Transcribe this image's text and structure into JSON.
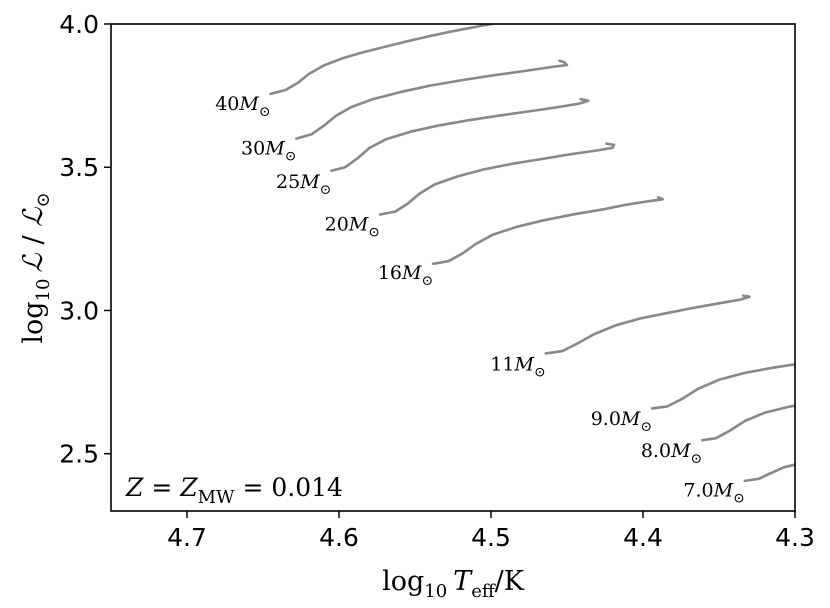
{
  "chart_data": {
    "type": "line",
    "xlabel_parts": {
      "base": "log",
      "sub": "10",
      "var": "T",
      "var_sub": "eff",
      "unit": "/K"
    },
    "ylabel_parts": {
      "base": "log",
      "sub": "10",
      "var": "ℒ",
      "sep": " / ",
      "sun": "ℒ",
      "sun_sub": "⊙"
    },
    "xlim": [
      4.75,
      4.3
    ],
    "ylim": [
      2.3,
      4.0
    ],
    "x_ticks": [
      4.7,
      4.6,
      4.5,
      4.4,
      4.3
    ],
    "x_tick_labels": [
      "4.7",
      "4.6",
      "4.5",
      "4.4",
      "4.3"
    ],
    "y_ticks": [
      2.5,
      3.0,
      3.5,
      4.0
    ],
    "y_tick_labels": [
      "2.5",
      "3.0",
      "3.5",
      "4.0"
    ],
    "grid": false,
    "line_color": "#888888",
    "annotation": {
      "lhs": "Z",
      "eq1": " = ",
      "mid": "Z",
      "mid_sub": "MW",
      "eq2": " = ",
      "value": "0.014"
    },
    "series": [
      {
        "name": "40M⊙",
        "mass": "40",
        "label_at": [
          4.645,
          3.7
        ],
        "points": [
          [
            4.645,
            3.756
          ],
          [
            4.635,
            3.77
          ],
          [
            4.627,
            3.795
          ],
          [
            4.62,
            3.825
          ],
          [
            4.61,
            3.855
          ],
          [
            4.598,
            3.88
          ],
          [
            4.585,
            3.9
          ],
          [
            4.57,
            3.92
          ],
          [
            4.555,
            3.94
          ],
          [
            4.54,
            3.958
          ],
          [
            4.525,
            3.975
          ],
          [
            4.51,
            3.99
          ],
          [
            4.495,
            4.005
          ]
        ]
      },
      {
        "name": "30M⊙",
        "mass": "30",
        "label_at": [
          4.628,
          3.545
        ],
        "points": [
          [
            4.628,
            3.6
          ],
          [
            4.618,
            3.615
          ],
          [
            4.61,
            3.645
          ],
          [
            4.602,
            3.68
          ],
          [
            4.592,
            3.71
          ],
          [
            4.578,
            3.737
          ],
          [
            4.56,
            3.762
          ],
          [
            4.54,
            3.785
          ],
          [
            4.518,
            3.805
          ],
          [
            4.497,
            3.822
          ],
          [
            4.478,
            3.836
          ],
          [
            4.46,
            3.85
          ],
          [
            4.45,
            3.857
          ],
          [
            4.452,
            3.867
          ],
          [
            4.455,
            3.872
          ]
        ]
      },
      {
        "name": "25M⊙",
        "mass": "25",
        "label_at": [
          4.605,
          3.428
        ],
        "points": [
          [
            4.605,
            3.488
          ],
          [
            4.596,
            3.5
          ],
          [
            4.588,
            3.53
          ],
          [
            4.58,
            3.567
          ],
          [
            4.569,
            3.598
          ],
          [
            4.553,
            3.624
          ],
          [
            4.535,
            3.645
          ],
          [
            4.515,
            3.664
          ],
          [
            4.495,
            3.68
          ],
          [
            4.475,
            3.695
          ],
          [
            4.456,
            3.71
          ],
          [
            4.442,
            3.722
          ],
          [
            4.436,
            3.732
          ],
          [
            4.441,
            3.738
          ]
        ]
      },
      {
        "name": "20M⊙",
        "mass": "20",
        "label_at": [
          4.573,
          3.28
        ],
        "points": [
          [
            4.573,
            3.335
          ],
          [
            4.563,
            3.345
          ],
          [
            4.555,
            3.372
          ],
          [
            4.547,
            3.408
          ],
          [
            4.537,
            3.44
          ],
          [
            4.522,
            3.468
          ],
          [
            4.505,
            3.492
          ],
          [
            4.485,
            3.513
          ],
          [
            4.465,
            3.53
          ],
          [
            4.448,
            3.545
          ],
          [
            4.431,
            3.558
          ],
          [
            4.42,
            3.568
          ],
          [
            4.419,
            3.578
          ],
          [
            4.424,
            3.582
          ]
        ]
      },
      {
        "name": "16M⊙",
        "mass": "16",
        "label_at": [
          4.538,
          3.11
        ],
        "points": [
          [
            4.538,
            3.163
          ],
          [
            4.528,
            3.172
          ],
          [
            4.519,
            3.198
          ],
          [
            4.51,
            3.232
          ],
          [
            4.499,
            3.264
          ],
          [
            4.483,
            3.292
          ],
          [
            4.465,
            3.315
          ],
          [
            4.445,
            3.336
          ],
          [
            4.426,
            3.353
          ],
          [
            4.412,
            3.368
          ],
          [
            4.398,
            3.38
          ],
          [
            4.387,
            3.388
          ],
          [
            4.39,
            3.395
          ]
        ]
      },
      {
        "name": "11M⊙",
        "mass": "11",
        "label_at": [
          4.464,
          2.79
        ],
        "points": [
          [
            4.464,
            2.85
          ],
          [
            4.453,
            2.858
          ],
          [
            4.443,
            2.885
          ],
          [
            4.432,
            2.918
          ],
          [
            4.418,
            2.948
          ],
          [
            4.402,
            2.972
          ],
          [
            4.385,
            2.99
          ],
          [
            4.366,
            3.01
          ],
          [
            4.35,
            3.025
          ],
          [
            4.336,
            3.038
          ],
          [
            4.33,
            3.048
          ],
          [
            4.334,
            3.052
          ]
        ]
      },
      {
        "name": "9.0M⊙",
        "mass": "9.0",
        "label_at": [
          4.394,
          2.6
        ],
        "points": [
          [
            4.394,
            2.658
          ],
          [
            4.384,
            2.665
          ],
          [
            4.374,
            2.692
          ],
          [
            4.364,
            2.726
          ],
          [
            4.35,
            2.758
          ],
          [
            4.333,
            2.782
          ],
          [
            4.315,
            2.8
          ],
          [
            4.3,
            2.812
          ]
        ]
      },
      {
        "name": "8.0M⊙",
        "mass": "8.0",
        "label_at": [
          4.361,
          2.488
        ],
        "points": [
          [
            4.361,
            2.547
          ],
          [
            4.352,
            2.554
          ],
          [
            4.343,
            2.58
          ],
          [
            4.333,
            2.614
          ],
          [
            4.32,
            2.643
          ],
          [
            4.304,
            2.664
          ],
          [
            4.3,
            2.668
          ]
        ]
      },
      {
        "name": "7.0M⊙",
        "mass": "7.0",
        "label_at": [
          4.333,
          2.35
        ],
        "points": [
          [
            4.333,
            2.405
          ],
          [
            4.324,
            2.412
          ],
          [
            4.316,
            2.432
          ],
          [
            4.307,
            2.453
          ],
          [
            4.3,
            2.462
          ]
        ]
      }
    ]
  }
}
